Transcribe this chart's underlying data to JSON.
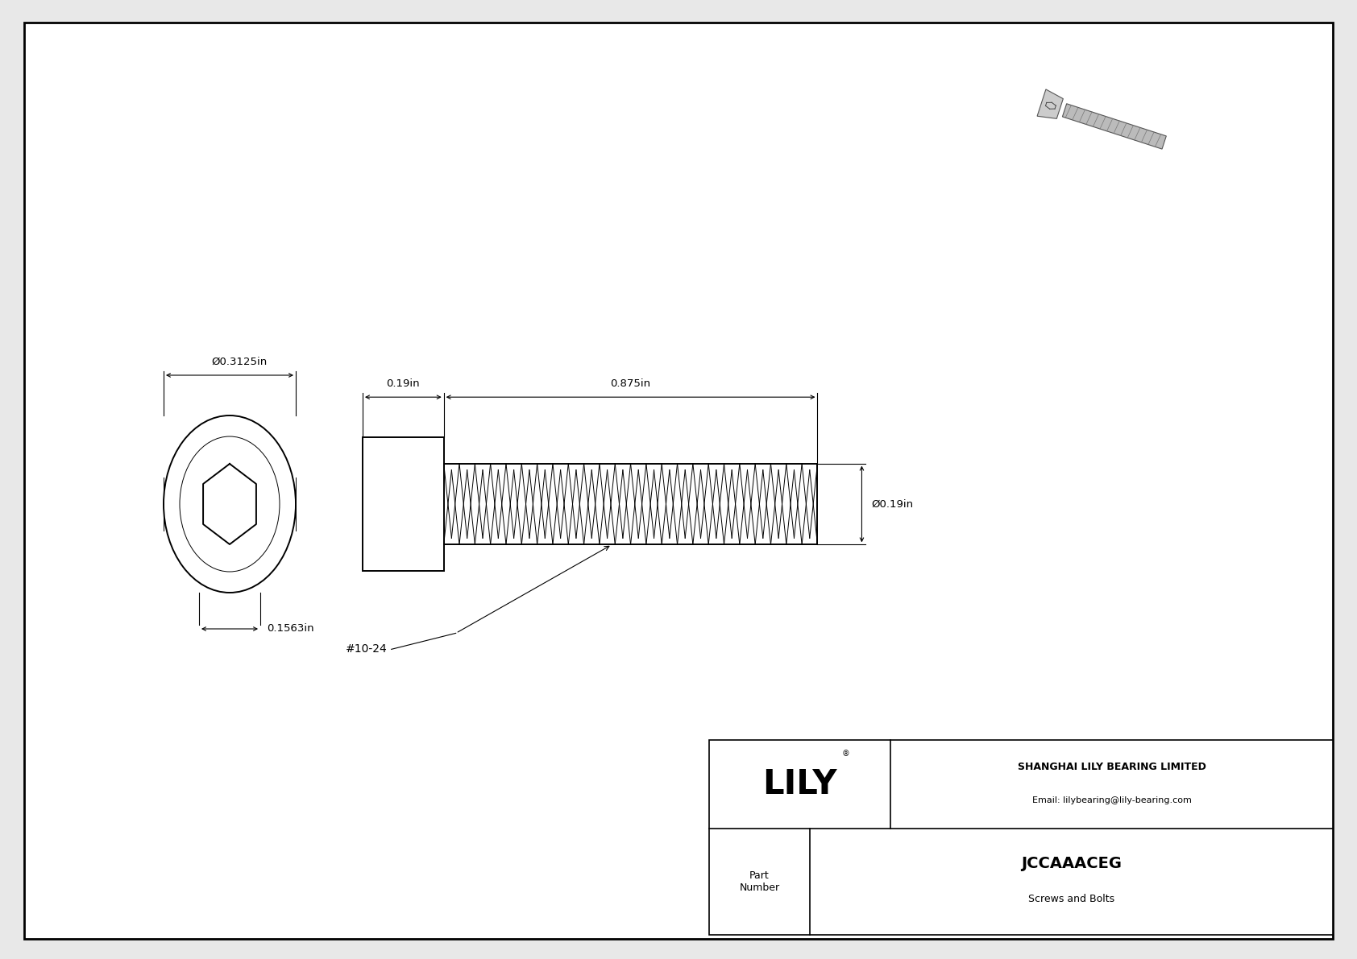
{
  "bg_color": "#e8e8e8",
  "drawing_bg": "#ffffff",
  "border_color": "#000000",
  "line_color": "#000000",
  "title": "JCCAAACEG",
  "subtitle": "Screws and Bolts",
  "company": "SHANGHAI LILY BEARING LIMITED",
  "email": "Email: lilybearing@lily-bearing.com",
  "part_label": "Part\nNumber",
  "logo_text": "LILY",
  "logo_reg": "®",
  "thread_label": "#10-24",
  "dim_head_width": "Ø0.3125in",
  "dim_hex_width": "0.1563in",
  "dim_head_length": "0.19in",
  "dim_shaft_length": "0.875in",
  "dim_shaft_dia": "Ø0.19in"
}
